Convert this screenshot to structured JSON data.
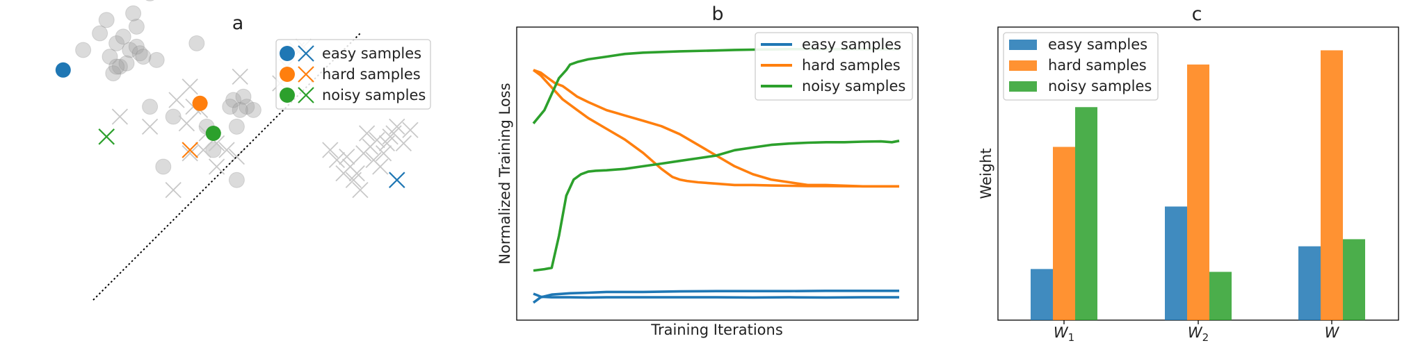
{
  "colors": {
    "easy": "#1f77b4",
    "hard": "#ff7f0e",
    "noisy": "#2ca02c",
    "gray": "#b3b3b3"
  },
  "panel_a": {
    "title": "a",
    "legend": [
      "easy samples",
      "hard samples",
      "noisy samples"
    ]
  },
  "panel_b": {
    "title": "b",
    "xlabel": "Training Iterations",
    "ylabel": "Normalized Training Loss",
    "legend": [
      "easy samples",
      "hard samples",
      "noisy samples"
    ]
  },
  "panel_c": {
    "title": "c",
    "ylabel": "Weight",
    "ticks": [
      "W1",
      "W2",
      "W"
    ],
    "legend": [
      "easy samples",
      "hard samples",
      "noisy samples"
    ]
  },
  "chart_data": [
    {
      "type": "scatter",
      "title": "a",
      "xlim": [
        0,
        100
      ],
      "ylim": [
        0,
        100
      ],
      "gray_circles": [
        [
          -3,
          75
        ],
        [
          2,
          80
        ],
        [
          4,
          84
        ],
        [
          5,
          73
        ],
        [
          7,
          77
        ],
        [
          9,
          79
        ],
        [
          11,
          75
        ],
        [
          13,
          82
        ],
        [
          8,
          70
        ],
        [
          10,
          71
        ],
        [
          6,
          68
        ],
        [
          13,
          76
        ],
        [
          14,
          74
        ],
        [
          15,
          73
        ],
        [
          12,
          86
        ],
        [
          17,
          92
        ],
        [
          7,
          70
        ],
        [
          31,
          77
        ],
        [
          19,
          72
        ],
        [
          17,
          58
        ],
        [
          24,
          55
        ],
        [
          34,
          52
        ],
        [
          36,
          45
        ],
        [
          42,
          60
        ],
        [
          46,
          58
        ],
        [
          48,
          57
        ],
        [
          45,
          61
        ],
        [
          41,
          58
        ],
        [
          44,
          57
        ],
        [
          43,
          52
        ],
        [
          21,
          40
        ],
        [
          43,
          36
        ]
      ],
      "gray_crosses": [
        [
          25,
          60
        ],
        [
          29,
          64
        ],
        [
          30,
          58
        ],
        [
          32,
          57
        ],
        [
          34,
          50
        ],
        [
          36,
          48
        ],
        [
          28,
          53
        ],
        [
          37,
          47
        ],
        [
          40,
          45
        ],
        [
          33,
          45
        ],
        [
          43,
          43
        ],
        [
          37,
          40
        ],
        [
          29,
          44
        ],
        [
          24,
          33
        ],
        [
          17,
          52
        ],
        [
          8,
          55
        ],
        [
          58,
          70
        ],
        [
          56,
          65
        ],
        [
          61,
          75
        ],
        [
          63,
          76
        ],
        [
          44,
          67
        ],
        [
          71,
          45
        ],
        [
          73,
          42
        ],
        [
          76,
          43
        ],
        [
          77,
          40
        ],
        [
          79,
          38
        ],
        [
          81,
          44
        ],
        [
          83,
          46
        ],
        [
          84,
          42
        ],
        [
          85,
          48
        ],
        [
          78,
          36
        ],
        [
          80,
          33
        ],
        [
          75,
          38
        ],
        [
          86,
          40
        ],
        [
          88,
          47
        ],
        [
          90,
          50
        ],
        [
          82,
          50
        ],
        [
          87,
          44
        ],
        [
          89,
          49
        ],
        [
          91,
          52
        ],
        [
          93,
          47
        ],
        [
          95,
          51
        ]
      ],
      "dividing_line": [
        [
          0,
          0
        ],
        [
          80,
          80
        ]
      ],
      "easy": {
        "circle": [
          -9,
          69
        ],
        "cross": [
          91,
          36
        ]
      },
      "hard": {
        "circle": [
          32,
          59
        ],
        "cross": [
          29,
          45
        ]
      },
      "noisy": {
        "circle": [
          36,
          50
        ],
        "cross": [
          4,
          49
        ]
      }
    },
    {
      "type": "line",
      "title": "b",
      "xlabel": "Training Iterations",
      "ylabel": "Normalized Training Loss",
      "xlim": [
        0,
        100
      ],
      "ylim": [
        0,
        100
      ],
      "series": [
        {
          "name": "easy samples",
          "color": "#1f77b4",
          "x": [
            0,
            1,
            2,
            5,
            10,
            15,
            20,
            30,
            40,
            50,
            60,
            70,
            80,
            90,
            100
          ],
          "y": [
            5,
            6,
            7,
            8,
            8.5,
            8.7,
            9,
            9,
            9.2,
            9.3,
            9.3,
            9.3,
            9.4,
            9.4,
            9.4
          ]
        },
        {
          "name": "easy samples",
          "color": "#1f77b4",
          "x": [
            0,
            1,
            2,
            5,
            10,
            15,
            20,
            30,
            40,
            50,
            60,
            70,
            80,
            90,
            100
          ],
          "y": [
            8.3,
            7.8,
            7.2,
            7,
            7,
            6.9,
            7,
            7,
            7,
            7,
            6.9,
            7,
            6.9,
            7,
            7
          ]
        },
        {
          "name": "hard samples",
          "color": "#ff7f0e",
          "x": [
            0,
            2,
            4,
            6,
            8,
            10,
            12,
            15,
            20,
            25,
            30,
            35,
            40,
            45,
            50,
            55,
            60,
            65,
            70,
            75,
            80,
            90,
            100
          ],
          "y": [
            92,
            91,
            89,
            87,
            86,
            84,
            82,
            80,
            77,
            75,
            73,
            71,
            68,
            64,
            60,
            56,
            53,
            51,
            50,
            49,
            49,
            48.5,
            48.5
          ]
        },
        {
          "name": "hard samples",
          "color": "#ff7f0e",
          "x": [
            0,
            2,
            4,
            6,
            8,
            10,
            12,
            15,
            20,
            25,
            30,
            35,
            38,
            40,
            42,
            45,
            50,
            55,
            60,
            65,
            70,
            75,
            80,
            90,
            100
          ],
          "y": [
            92,
            90,
            87,
            84,
            81,
            79,
            77,
            74,
            70,
            66,
            61,
            55,
            52,
            51,
            50.5,
            50,
            49.5,
            49,
            49,
            48.8,
            48.7,
            48.6,
            48.6,
            48.5,
            48.5
          ]
        },
        {
          "name": "noisy samples",
          "color": "#2ca02c",
          "x": [
            0,
            3,
            5,
            7,
            9,
            10,
            12,
            15,
            20,
            25,
            30,
            40,
            50,
            55,
            60,
            65,
            70,
            75,
            80,
            85,
            90,
            95,
            100
          ],
          "y": [
            72,
            77,
            83,
            89,
            92,
            94,
            95,
            96,
            97,
            98,
            98.5,
            99,
            99.3,
            99.5,
            99.6,
            99.7,
            99.8,
            99.8,
            99.8,
            99.8,
            99.8,
            99.8,
            99.8
          ]
        },
        {
          "name": "noisy samples",
          "color": "#2ca02c",
          "x": [
            0,
            3,
            5,
            7,
            9,
            11,
            13,
            15,
            17,
            20,
            25,
            30,
            35,
            40,
            45,
            50,
            55,
            60,
            65,
            70,
            75,
            80,
            85,
            90,
            95,
            98,
            100
          ],
          "y": [
            17,
            17.5,
            18,
            30,
            45,
            51,
            53,
            54,
            54.3,
            54.5,
            55,
            56,
            57,
            58,
            59,
            60,
            62,
            63,
            64,
            64.5,
            64.8,
            65,
            65,
            65.2,
            65.3,
            65,
            65.5
          ]
        }
      ]
    },
    {
      "type": "bar",
      "title": "c",
      "ylabel": "Weight",
      "categories": [
        "W1",
        "W2",
        "W"
      ],
      "ylim": [
        0,
        100
      ],
      "series": [
        {
          "name": "easy samples",
          "color": "#1f77b4",
          "values": [
            18,
            40,
            26
          ]
        },
        {
          "name": "hard samples",
          "color": "#ff7f0e",
          "values": [
            61,
            90,
            95
          ]
        },
        {
          "name": "noisy samples",
          "color": "#2ca02c",
          "values": [
            75,
            17,
            28.5
          ]
        }
      ]
    }
  ]
}
